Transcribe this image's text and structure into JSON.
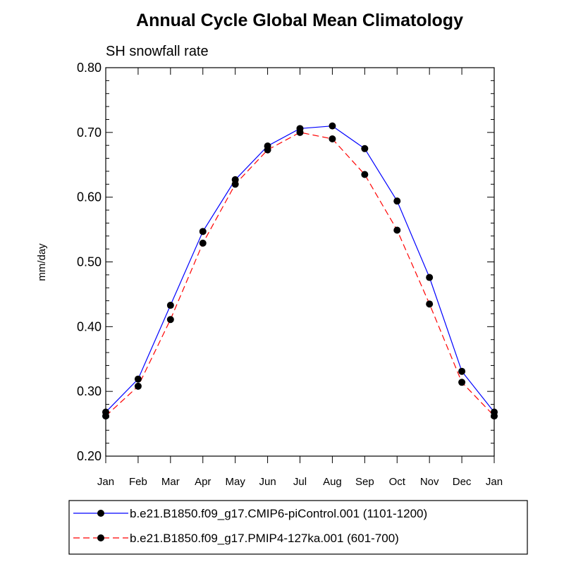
{
  "chart_data": {
    "type": "line",
    "title": "Annual Cycle Global Mean Climatology",
    "subtitle": "SH snowfall rate",
    "xlabel": "",
    "ylabel": "mm/day",
    "categories": [
      "Jan",
      "Feb",
      "Mar",
      "Apr",
      "May",
      "Jun",
      "Jul",
      "Aug",
      "Sep",
      "Oct",
      "Nov",
      "Dec",
      "Jan"
    ],
    "ylim": [
      0.2,
      0.8
    ],
    "yticks": [
      0.2,
      0.3,
      0.4,
      0.5,
      0.6,
      0.7,
      0.8
    ],
    "ytick_labels": [
      "0.20",
      "0.30",
      "0.40",
      "0.50",
      "0.60",
      "0.70",
      "0.80"
    ],
    "grid": false,
    "legend_position": "bottom",
    "series": [
      {
        "name": "b.e21.B1850.f09_g17.CMIP6-piControl.001 (1101-1200)",
        "color": "#0000ff",
        "line_style": "solid",
        "marker": "filled-circle",
        "values": [
          0.268,
          0.319,
          0.433,
          0.547,
          0.627,
          0.679,
          0.706,
          0.71,
          0.675,
          0.594,
          0.476,
          0.331,
          0.268
        ]
      },
      {
        "name": "b.e21.B1850.f09_g17.PMIP4-127ka.001 (601-700)",
        "color": "#ff0000",
        "line_style": "dashed",
        "marker": "filled-circle",
        "values": [
          0.262,
          0.308,
          0.411,
          0.529,
          0.62,
          0.673,
          0.7,
          0.69,
          0.635,
          0.549,
          0.435,
          0.314,
          0.262
        ]
      }
    ]
  }
}
